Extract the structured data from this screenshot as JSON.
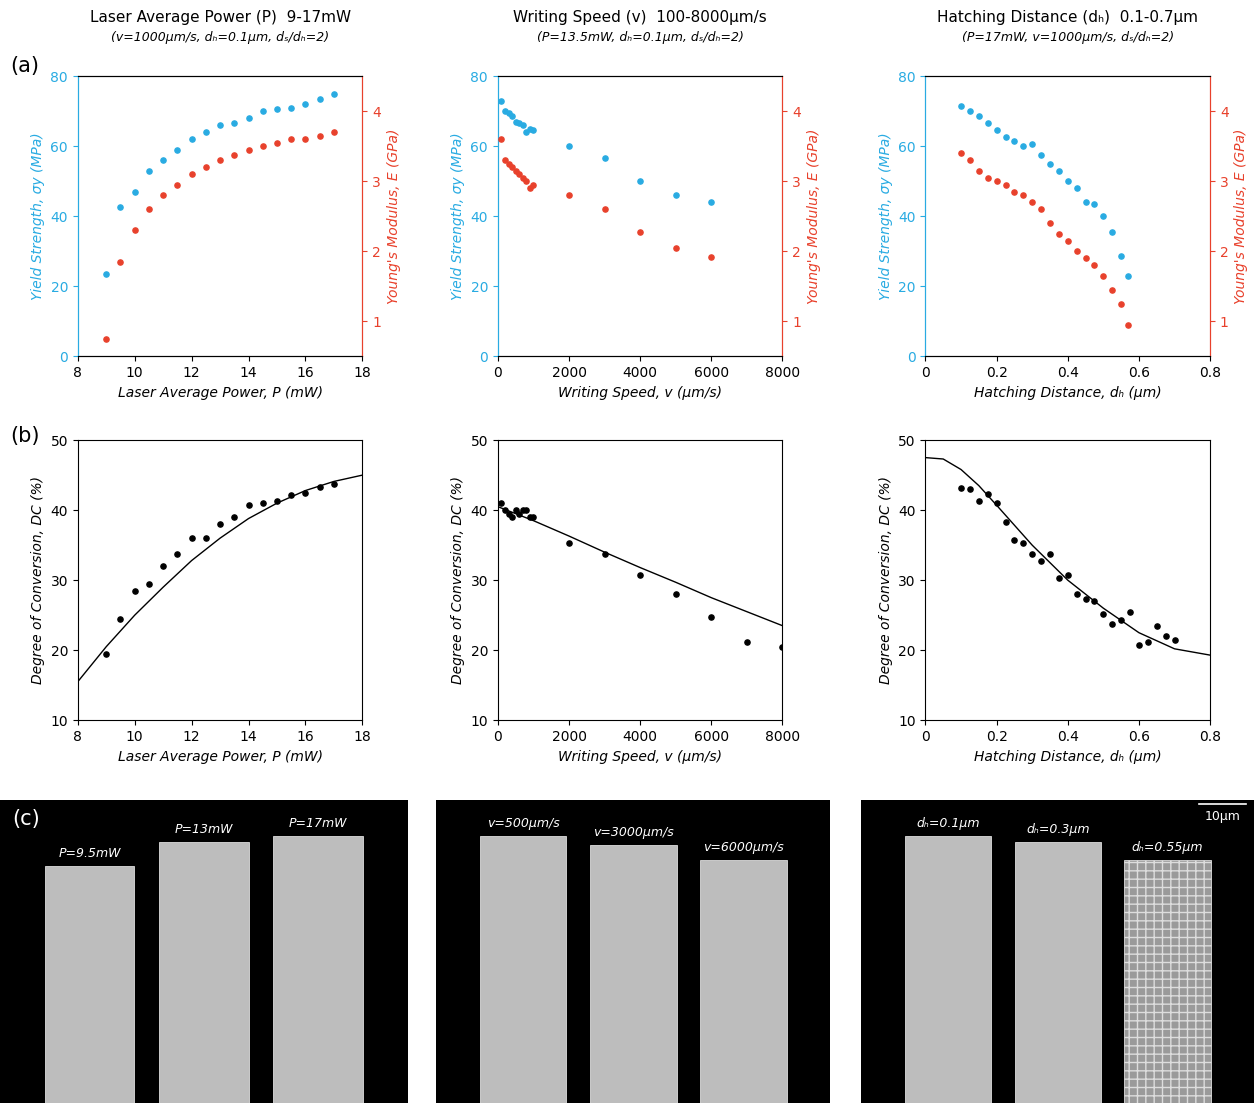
{
  "chart_data": [
    {
      "type": "scatter",
      "x_label": "Laser Average Power, P (mW)",
      "y_label": "Yield Strength, σy (MPa)",
      "y2_label": "Young's Modulus, E (GPa)",
      "xlim": [
        8,
        18
      ],
      "xticks": [
        8,
        10,
        12,
        14,
        16,
        18
      ],
      "ylim": [
        0,
        80
      ],
      "yticks": [
        0,
        20,
        40,
        60,
        80
      ],
      "y2lim": [
        0.5,
        4.5
      ],
      "y2ticks": [
        1,
        2,
        3,
        4
      ],
      "series": [
        {
          "color": "#29abe2",
          "marker": "o",
          "x": [
            9,
            9.5,
            10,
            10.5,
            11,
            11.5,
            12,
            12.5,
            13,
            13.5,
            14,
            14.5,
            15,
            15.5,
            16,
            16.5,
            17
          ],
          "values": [
            23.5,
            42.5,
            47,
            53,
            56,
            59,
            62,
            64,
            66,
            66.5,
            68,
            70,
            70.5,
            71,
            72,
            73.5,
            75
          ]
        },
        {
          "color": "#e8412c",
          "marker": "o",
          "axis": "y2",
          "x": [
            9,
            9.5,
            10,
            10.5,
            11,
            11.5,
            12,
            12.5,
            13,
            13.5,
            14,
            14.5,
            15,
            15.5,
            16,
            16.5,
            17
          ],
          "values": [
            0.75,
            1.85,
            2.3,
            2.6,
            2.8,
            2.95,
            3.1,
            3.2,
            3.3,
            3.37,
            3.45,
            3.5,
            3.55,
            3.6,
            3.6,
            3.65,
            3.7
          ]
        }
      ]
    },
    {
      "type": "scatter",
      "x_label": "Writing Speed, v (μm/s)",
      "y_label": "Yield Strength, σy (MPa)",
      "y2_label": "Young's Modulus, E (GPa)",
      "xlim": [
        0,
        8000
      ],
      "xticks": [
        0,
        2000,
        4000,
        6000,
        8000
      ],
      "ylim": [
        0,
        80
      ],
      "yticks": [
        0,
        20,
        40,
        60,
        80
      ],
      "y2lim": [
        0.5,
        4.5
      ],
      "y2ticks": [
        1,
        2,
        3,
        4
      ],
      "series": [
        {
          "color": "#29abe2",
          "marker": "o",
          "x": [
            100,
            200,
            300,
            400,
            500,
            600,
            700,
            800,
            900,
            1000,
            2000,
            3000,
            4000,
            5000,
            6000
          ],
          "values": [
            73,
            70,
            69.5,
            68.5,
            67,
            66.5,
            66,
            64,
            65,
            64.5,
            60,
            56.5,
            50,
            46,
            44
          ]
        },
        {
          "color": "#e8412c",
          "marker": "o",
          "axis": "y2",
          "x": [
            100,
            200,
            300,
            400,
            500,
            600,
            700,
            800,
            900,
            1000,
            2000,
            3000,
            4000,
            5000,
            6000
          ],
          "values": [
            3.6,
            3.3,
            3.25,
            3.2,
            3.15,
            3.1,
            3.05,
            3.0,
            2.9,
            2.95,
            2.8,
            2.6,
            2.28,
            2.05,
            1.92
          ]
        }
      ]
    },
    {
      "type": "scatter",
      "x_label": "Hatching Distance, dₕ (μm)",
      "y_label": "Yield Strength, σy (MPa)",
      "y2_label": "Young's Modulus, E (GPa)",
      "xlim": [
        0,
        0.8
      ],
      "xticks": [
        0,
        0.2,
        0.4,
        0.6,
        0.8
      ],
      "ylim": [
        0,
        80
      ],
      "yticks": [
        0,
        20,
        40,
        60,
        80
      ],
      "y2lim": [
        0.5,
        4.5
      ],
      "y2ticks": [
        1,
        2,
        3,
        4
      ],
      "series": [
        {
          "color": "#29abe2",
          "marker": "o",
          "x": [
            0.1,
            0.125,
            0.15,
            0.175,
            0.2,
            0.225,
            0.25,
            0.275,
            0.3,
            0.325,
            0.35,
            0.375,
            0.4,
            0.425,
            0.45,
            0.475,
            0.5,
            0.525,
            0.55,
            0.57
          ],
          "values": [
            71.5,
            70,
            68.5,
            66.5,
            64.5,
            62.5,
            61.5,
            60,
            60.5,
            57.5,
            55,
            53,
            50,
            48,
            44,
            43.5,
            40,
            35.5,
            28.5,
            23
          ]
        },
        {
          "color": "#e8412c",
          "marker": "o",
          "axis": "y2",
          "x": [
            0.1,
            0.125,
            0.15,
            0.175,
            0.2,
            0.225,
            0.25,
            0.275,
            0.3,
            0.325,
            0.35,
            0.375,
            0.4,
            0.425,
            0.45,
            0.475,
            0.5,
            0.525,
            0.55,
            0.57
          ],
          "values": [
            3.4,
            3.3,
            3.15,
            3.05,
            3.0,
            2.95,
            2.85,
            2.8,
            2.7,
            2.6,
            2.4,
            2.25,
            2.15,
            2.0,
            1.9,
            1.8,
            1.65,
            1.45,
            1.25,
            0.95
          ]
        }
      ]
    },
    {
      "type": "scatter",
      "x_label": "Laser Average Power, P (mW)",
      "y_label": "Degree of Conversion, DC (%)",
      "xlim": [
        8,
        18
      ],
      "xticks": [
        8,
        10,
        12,
        14,
        16,
        18
      ],
      "ylim": [
        10,
        50
      ],
      "yticks": [
        10,
        20,
        30,
        40,
        50
      ],
      "series": [
        {
          "color": "#000000",
          "marker": "o",
          "x": [
            9,
            9.5,
            10,
            10.5,
            11,
            11.5,
            12,
            12.5,
            13,
            13.5,
            14,
            14.5,
            15,
            15.5,
            16,
            16.5,
            17
          ],
          "values": [
            19.5,
            24.5,
            28.5,
            29.5,
            32,
            33.8,
            36,
            36,
            38,
            39,
            40.8,
            41,
            41.3,
            42.2,
            42.5,
            43.3,
            43.8
          ]
        },
        {
          "type": "line",
          "color": "#000000",
          "line_style": "solid",
          "x": [
            8,
            9,
            10,
            11,
            12,
            13,
            14,
            15,
            16,
            17,
            18
          ],
          "values": [
            15.5,
            20.5,
            25,
            29,
            32.8,
            36,
            38.8,
            41,
            42.8,
            44.1,
            45
          ]
        }
      ]
    },
    {
      "type": "scatter",
      "x_label": "Writing Speed, v (μm/s)",
      "y_label": "Degree of Conversion, DC (%)",
      "xlim": [
        0,
        8000
      ],
      "xticks": [
        0,
        2000,
        4000,
        6000,
        8000
      ],
      "ylim": [
        10,
        50
      ],
      "yticks": [
        10,
        20,
        30,
        40,
        50
      ],
      "series": [
        {
          "color": "#000000",
          "marker": "o",
          "x": [
            100,
            200,
            300,
            400,
            500,
            600,
            700,
            800,
            900,
            1000,
            2000,
            3000,
            4000,
            5000,
            6000,
            7000,
            8000
          ],
          "values": [
            41,
            40,
            39.5,
            39,
            40,
            39.5,
            40,
            40,
            39,
            39,
            35.3,
            33.8,
            30.7,
            28,
            24.8,
            21.2,
            20.5
          ]
        },
        {
          "type": "line",
          "color": "#000000",
          "line_style": "solid",
          "x": [
            0,
            1000,
            2000,
            3000,
            4000,
            5000,
            6000,
            7000,
            8000
          ],
          "values": [
            40.5,
            38.5,
            36.3,
            34,
            31.8,
            29.7,
            27.5,
            25.5,
            23.5
          ]
        }
      ]
    },
    {
      "type": "scatter",
      "x_label": "Hatching Distance, dₕ (μm)",
      "y_label": "Degree of Conversion, DC (%)",
      "xlim": [
        0,
        0.8
      ],
      "xticks": [
        0,
        0.2,
        0.4,
        0.6,
        0.8
      ],
      "ylim": [
        10,
        50
      ],
      "yticks": [
        10,
        20,
        30,
        40,
        50
      ],
      "series": [
        {
          "color": "#000000",
          "marker": "o",
          "x": [
            0.1,
            0.125,
            0.15,
            0.175,
            0.2,
            0.225,
            0.25,
            0.275,
            0.3,
            0.325,
            0.35,
            0.375,
            0.4,
            0.425,
            0.45,
            0.475,
            0.5,
            0.525,
            0.55,
            0.575,
            0.6,
            0.625,
            0.65,
            0.675,
            0.7
          ],
          "values": [
            43.2,
            43,
            41.3,
            42.3,
            41,
            38.3,
            35.8,
            35.3,
            33.7,
            32.7,
            33.7,
            30.3,
            30.8,
            28,
            27.3,
            27,
            25.2,
            23.8,
            24.3,
            25.5,
            20.8,
            21.2,
            23.4,
            22,
            21.5
          ]
        },
        {
          "type": "line",
          "color": "#000000",
          "line_style": "solid",
          "x": [
            0,
            0.05,
            0.1,
            0.15,
            0.2,
            0.3,
            0.4,
            0.5,
            0.6,
            0.7,
            0.8
          ],
          "values": [
            47.5,
            47.3,
            45.8,
            43.5,
            40.7,
            35,
            30,
            26,
            22.5,
            20.2,
            19.3
          ]
        }
      ]
    }
  ],
  "columns": [
    {
      "title": "Laser Average Power (P)  9-17mW",
      "subtitle": "(v=1000μm/s, dₕ=0.1μm, dₛ/dₕ=2)"
    },
    {
      "title": "Writing Speed (v)  100-8000μm/s",
      "subtitle": "(P=13.5mW, dₕ=0.1μm, dₛ/dₕ=2)"
    },
    {
      "title": "Hatching Distance (dₕ)  0.1-0.7μm",
      "subtitle": "(P=17mW, v=1000μm/s, dₛ/dₕ=2)"
    }
  ],
  "panel_labels": [
    "(a)",
    "(b)",
    "(c)"
  ],
  "images": [
    {
      "labels": [
        "P=9.5mW",
        "P=13mW",
        "P=17mW"
      ]
    },
    {
      "labels": [
        "v=500μm/s",
        "v=3000μm/s",
        "v=6000μm/s"
      ]
    },
    {
      "labels": [
        "dₕ=0.1μm",
        "dₕ=0.3μm",
        "dₕ=0.55μm"
      ]
    }
  ],
  "scale_bar": "10μm"
}
